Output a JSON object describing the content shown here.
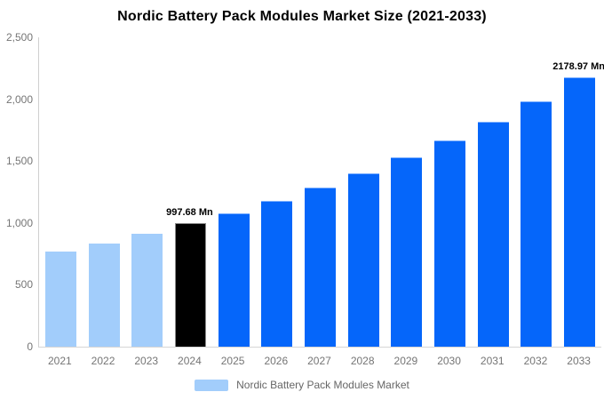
{
  "title": "Nordic Battery Pack Modules Market Size (2021-2033)",
  "legend": {
    "label": "Nordic Battery Pack Modules Market"
  },
  "colors": {
    "historical_bar": "#A2CDFB",
    "current_bar": "#000000",
    "forecast_bar": "#0566FA",
    "axis_line": "#D6D6D6",
    "tick_text": "#757575",
    "legend_text": "#666666",
    "annotation_text": "#000000"
  },
  "chart_data": {
    "type": "bar",
    "title": "Nordic Battery Pack Modules Market Size (2021-2033)",
    "categories": [
      "2021",
      "2022",
      "2023",
      "2024",
      "2025",
      "2026",
      "2027",
      "2028",
      "2029",
      "2030",
      "2031",
      "2032",
      "2033"
    ],
    "values": [
      766,
      836,
      910,
      997.68,
      1081,
      1177,
      1288,
      1403,
      1528,
      1666,
      1816,
      1986,
      2178.97
    ],
    "series": [
      {
        "name": "Nordic Battery Pack Modules Market",
        "values": [
          766,
          836,
          910,
          997.68,
          1081,
          1177,
          1288,
          1403,
          1528,
          1666,
          1816,
          1986,
          2178.97
        ]
      }
    ],
    "bar_colors": [
      "#A2CDFB",
      "#A2CDFB",
      "#A2CDFB",
      "#000000",
      "#0566FA",
      "#0566FA",
      "#0566FA",
      "#0566FA",
      "#0566FA",
      "#0566FA",
      "#0566FA",
      "#0566FA",
      "#0566FA"
    ],
    "bar_roles": [
      "historical",
      "historical",
      "historical",
      "current",
      "forecast",
      "forecast",
      "forecast",
      "forecast",
      "forecast",
      "forecast",
      "forecast",
      "forecast",
      "forecast"
    ],
    "xlabel": "",
    "ylabel": "",
    "ylim": [
      0,
      2500
    ],
    "yticks": [
      0,
      500,
      1000,
      1500,
      2000,
      2500
    ],
    "ytick_labels": [
      "0",
      "500",
      "1,000",
      "1,500",
      "2,000",
      "2,500"
    ],
    "grid": false,
    "legend_position": "bottom",
    "annotations": [
      {
        "category": "2024",
        "value": 997.68,
        "text": "997.68 Mn"
      },
      {
        "category": "2033",
        "value": 2178.97,
        "text": "2178.97 Mn"
      }
    ]
  }
}
